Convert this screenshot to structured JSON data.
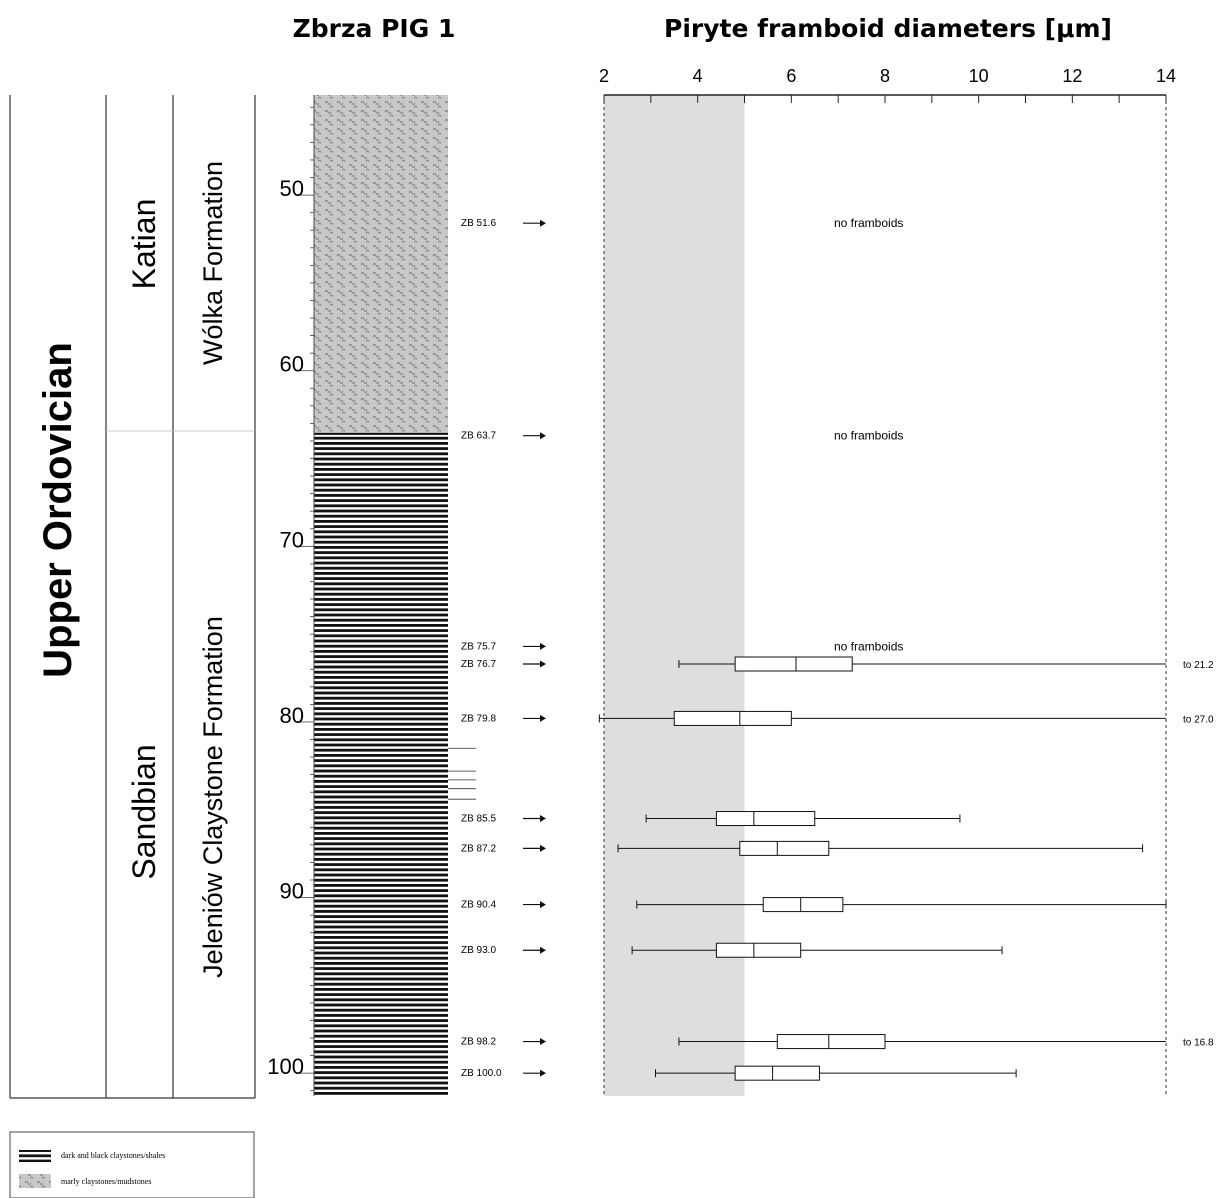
{
  "titles": {
    "section": "Zbrza PIG 1",
    "chart": "Piryte framboid diameters [μm]"
  },
  "stratigraphy": {
    "system": "Upper Ordovician",
    "stages": [
      {
        "name": "Katian",
        "top": 44.3,
        "bottom": 63.6
      },
      {
        "name": "Sandbian",
        "top": 63.6,
        "bottom": 101.3
      }
    ],
    "formations": [
      {
        "name": "Wólka Formation",
        "top": 44.3,
        "bottom": 63.6
      },
      {
        "name": "Jeleniów Claystone Formation",
        "top": 63.6,
        "bottom": 101.3
      }
    ]
  },
  "depth_axis": {
    "ticks": [
      50,
      60,
      70,
      80,
      90,
      100
    ],
    "range": [
      44.3,
      101.3
    ]
  },
  "lithology": [
    {
      "type": "marly",
      "top": 44.3,
      "bottom": 63.6
    },
    {
      "type": "dark",
      "top": 63.6,
      "bottom": 101.3
    }
  ],
  "legend": {
    "items": [
      {
        "type": "dark",
        "label": "dark and black claystones/shales"
      },
      {
        "type": "marly",
        "label": "marly claystones/mudstones"
      }
    ]
  },
  "chart_data": {
    "type": "box",
    "title": "Piryte framboid diameters [μm]",
    "xlim": [
      2,
      14
    ],
    "xticks": [
      2,
      4,
      6,
      8,
      10,
      12,
      14
    ],
    "highlight_band": [
      2,
      5
    ],
    "samples": [
      {
        "label": "ZB 51.6",
        "depth": 51.6,
        "note": "no framboids"
      },
      {
        "label": "ZB 63.7",
        "depth": 63.7,
        "note": "no framboids"
      },
      {
        "label": "ZB 75.7",
        "depth": 75.7,
        "note": "no framboids"
      },
      {
        "label": "ZB 76.7",
        "depth": 76.7,
        "min": 3.6,
        "q1": 4.8,
        "median": 6.1,
        "q3": 7.3,
        "max": 21.2,
        "overflow": "to 21.2"
      },
      {
        "label": "ZB 79.8",
        "depth": 79.8,
        "min": 1.9,
        "q1": 3.5,
        "median": 4.9,
        "q3": 6.0,
        "max": 27.0,
        "overflow": "to 27.0"
      },
      {
        "label": "ZB 85.5",
        "depth": 85.5,
        "min": 2.9,
        "q1": 4.4,
        "median": 5.2,
        "q3": 6.5,
        "max": 9.6
      },
      {
        "label": "ZB 87.2",
        "depth": 87.2,
        "min": 2.3,
        "q1": 4.9,
        "median": 5.7,
        "q3": 6.8,
        "max": 13.5
      },
      {
        "label": "ZB 90.4",
        "depth": 90.4,
        "min": 2.7,
        "q1": 5.4,
        "median": 6.2,
        "q3": 7.1,
        "max": 14.0
      },
      {
        "label": "ZB 93.0",
        "depth": 93.0,
        "min": 2.6,
        "q1": 4.4,
        "median": 5.2,
        "q3": 6.2,
        "max": 10.5
      },
      {
        "label": "ZB 98.2",
        "depth": 98.2,
        "min": 3.6,
        "q1": 5.7,
        "median": 6.8,
        "q3": 8.0,
        "max": 16.8,
        "overflow": "to 16.8"
      },
      {
        "label": "ZB 100.0",
        "depth": 100.0,
        "min": 3.1,
        "q1": 4.8,
        "median": 5.6,
        "q3": 6.6,
        "max": 10.8
      }
    ]
  }
}
